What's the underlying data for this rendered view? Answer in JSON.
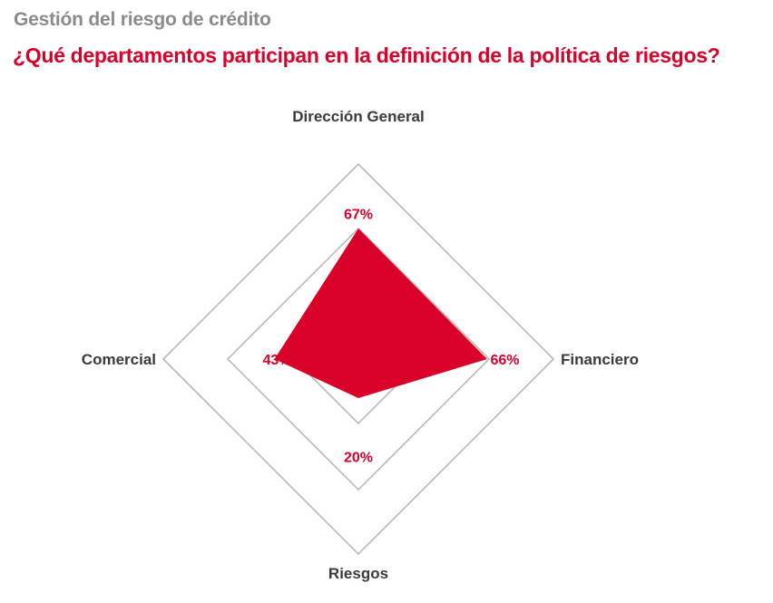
{
  "header": {
    "subtitle": "Gestión del riesgo de crédito",
    "title": "¿Qué departamentos participan en la definición de la política de riesgos?"
  },
  "colors": {
    "accent": "#d9002a",
    "grid": "#b8b8b8",
    "subtitle": "#8a8a8a",
    "label": "#3a3a3a"
  },
  "chart_data": {
    "type": "radar",
    "title": "¿Qué departamentos participan en la definición de la política de riesgos?",
    "subtitle": "Gestión del riesgo de crédito",
    "unit": "%",
    "categories": [
      "Dirección General",
      "Financiero",
      "Riesgos",
      "Comercial"
    ],
    "values": [
      67,
      66,
      20,
      43
    ],
    "value_labels": [
      "67%",
      "66%",
      "20%",
      "43%"
    ],
    "rlim": [
      0,
      100
    ],
    "grid_levels": [
      33,
      67,
      100
    ],
    "legend": "none"
  }
}
